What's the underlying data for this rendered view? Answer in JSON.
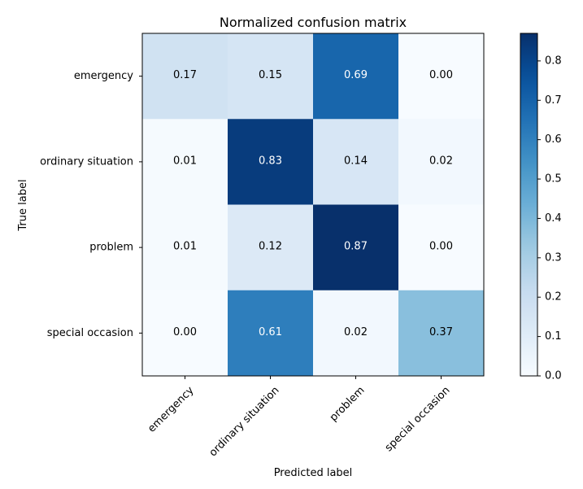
{
  "chart_data": {
    "type": "heatmap",
    "title": "Normalized confusion matrix",
    "xlabel": "Predicted label",
    "ylabel": "True label",
    "x_categories": [
      "emergency",
      "ordinary situation",
      "problem",
      "special occasion"
    ],
    "y_categories": [
      "emergency",
      "ordinary situation",
      "problem",
      "special occasion"
    ],
    "values": [
      [
        0.17,
        0.15,
        0.69,
        0.0
      ],
      [
        0.01,
        0.83,
        0.14,
        0.02
      ],
      [
        0.01,
        0.12,
        0.87,
        0.0
      ],
      [
        0.0,
        0.61,
        0.02,
        0.37
      ]
    ],
    "value_labels": [
      [
        "0.17",
        "0.15",
        "0.69",
        "0.00"
      ],
      [
        "0.01",
        "0.83",
        "0.14",
        "0.02"
      ],
      [
        "0.01",
        "0.12",
        "0.87",
        "0.00"
      ],
      [
        "0.00",
        "0.61",
        "0.02",
        "0.37"
      ]
    ],
    "colormap": "Blues",
    "colorbar": {
      "range": [
        0.0,
        0.87
      ],
      "ticks": [
        0.0,
        0.1,
        0.2,
        0.3,
        0.4,
        0.5,
        0.6,
        0.7,
        0.8
      ],
      "tick_labels": [
        "0.0",
        "0.1",
        "0.2",
        "0.3",
        "0.4",
        "0.5",
        "0.6",
        "0.7",
        "0.8"
      ]
    },
    "grid": false,
    "x_tick_rotation_deg": 45
  }
}
